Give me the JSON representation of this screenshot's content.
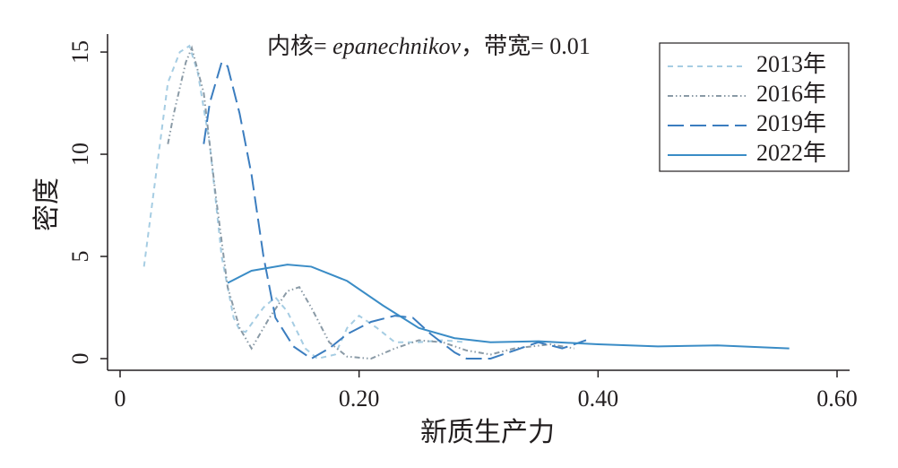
{
  "chart_data": {
    "type": "line",
    "annotation": {
      "prefix": "内核= ",
      "kernel": "epanechnikov",
      "suffix": "，带宽= 0.01"
    },
    "x_label": "新质生产力",
    "y_label": "密度",
    "xlim": [
      -0.0105,
      0.6105
    ],
    "ylim": [
      -0.57,
      15.88
    ],
    "xticks": [
      0,
      {
        "value": 0.2,
        "label": "0.20"
      },
      {
        "value": 0.4,
        "label": "0.40"
      },
      {
        "value": 0.6,
        "label": "0.60"
      }
    ],
    "yticks": [
      0,
      5,
      10,
      15
    ],
    "legend": "upper right",
    "series": [
      {
        "name": "2013年",
        "color": "#a6cde3",
        "dash": "6 5",
        "x": [
          0.02,
          0.03,
          0.04,
          0.05,
          0.058,
          0.065,
          0.075,
          0.085,
          0.095,
          0.1,
          0.105,
          0.12,
          0.13,
          0.14,
          0.155,
          0.165,
          0.18,
          0.19,
          0.2,
          0.215,
          0.23,
          0.25,
          0.27,
          0.29
        ],
        "values": [
          4.5,
          9,
          13.5,
          15,
          15.3,
          14,
          10.5,
          5,
          2,
          1.4,
          1.3,
          2.5,
          3,
          2.3,
          0.5,
          0,
          0.2,
          1.5,
          2.1,
          1.5,
          0.8,
          0.8,
          0.9,
          0.8
        ]
      },
      {
        "name": "2016年",
        "color": "#8a9aa6",
        "dash": "6 3 1.5 3 1.5 3",
        "x": [
          0.04,
          0.045,
          0.055,
          0.06,
          0.07,
          0.08,
          0.09,
          0.1,
          0.11,
          0.125,
          0.14,
          0.15,
          0.16,
          0.175,
          0.19,
          0.21,
          0.23,
          0.25,
          0.27,
          0.29,
          0.31,
          0.33,
          0.36,
          0.38
        ],
        "values": [
          10.5,
          12,
          14.5,
          15.2,
          13,
          8,
          3.5,
          1.5,
          0.5,
          2,
          3.3,
          3.5,
          2.5,
          0.8,
          0.1,
          0,
          0.5,
          0.9,
          0.8,
          0.4,
          0.2,
          0.5,
          0.7,
          0.5
        ]
      },
      {
        "name": "2019年",
        "color": "#3b7dbf",
        "dash": "18 7",
        "x": [
          0.07,
          0.075,
          0.085,
          0.09,
          0.1,
          0.11,
          0.12,
          0.13,
          0.145,
          0.16,
          0.175,
          0.19,
          0.21,
          0.23,
          0.245,
          0.26,
          0.28,
          0.29,
          0.31,
          0.33,
          0.35,
          0.37,
          0.39
        ],
        "values": [
          10.5,
          12.5,
          14.5,
          14.3,
          12,
          9,
          5,
          2,
          0.6,
          0,
          0.5,
          1.2,
          1.8,
          2.1,
          2,
          1.2,
          0.3,
          0,
          0,
          0.4,
          0.8,
          0.5,
          0.9
        ]
      },
      {
        "name": "2022年",
        "color": "#3a8cc6",
        "dash": "",
        "x": [
          0.09,
          0.11,
          0.14,
          0.16,
          0.19,
          0.22,
          0.25,
          0.28,
          0.31,
          0.35,
          0.4,
          0.45,
          0.5,
          0.56
        ],
        "values": [
          3.7,
          4.3,
          4.6,
          4.5,
          3.8,
          2.6,
          1.5,
          1,
          0.8,
          0.85,
          0.7,
          0.6,
          0.65,
          0.5
        ]
      }
    ]
  }
}
